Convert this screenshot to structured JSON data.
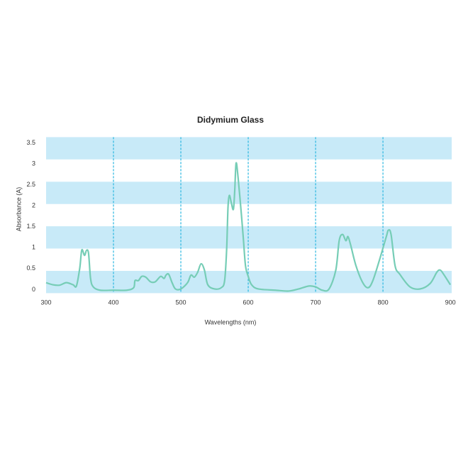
{
  "chart_data": {
    "type": "line",
    "title": "Didymium Glass",
    "x_label": "Wavelengths (nm)",
    "y_label": "Absorbance (A)",
    "xlim": [
      300,
      902
    ],
    "ylim": [
      -0.05,
      3.67
    ],
    "xticks": [
      300,
      400,
      500,
      600,
      700,
      800,
      900
    ],
    "yticks": [
      0,
      0.5,
      1,
      1.5,
      2,
      2.5,
      3,
      3.5
    ],
    "grid": "x",
    "series": [
      {
        "color": "#76cdb6",
        "x": [
          300,
          310,
          320,
          330,
          340,
          345,
          350,
          353,
          357,
          360,
          363,
          366,
          370,
          380,
          400,
          420,
          430,
          432,
          437,
          442,
          448,
          455,
          462,
          470,
          475,
          478,
          482,
          487,
          492,
          500,
          510,
          515,
          520,
          525,
          530,
          535,
          540,
          550,
          560,
          565,
          568,
          570,
          572,
          575,
          578,
          580,
          582,
          585,
          590,
          593,
          596,
          600,
          605,
          615,
          640,
          660,
          675,
          690,
          700,
          710,
          720,
          730,
          735,
          740,
          745,
          748,
          752,
          760,
          770,
          778,
          785,
          795,
          805,
          808,
          812,
          818,
          825,
          840,
          855,
          870,
          880,
          885,
          890,
          900
        ],
        "values": [
          0.2,
          0.15,
          0.14,
          0.2,
          0.15,
          0.12,
          0.55,
          0.98,
          0.85,
          0.97,
          0.9,
          0.3,
          0.1,
          0.02,
          0.02,
          0.02,
          0.08,
          0.25,
          0.25,
          0.35,
          0.33,
          0.22,
          0.22,
          0.35,
          0.3,
          0.38,
          0.4,
          0.2,
          0.05,
          0.05,
          0.2,
          0.38,
          0.33,
          0.45,
          0.65,
          0.5,
          0.15,
          0.05,
          0.08,
          0.25,
          1.0,
          2.0,
          2.28,
          2.1,
          1.95,
          2.4,
          3.05,
          2.7,
          1.8,
          1.2,
          0.6,
          0.35,
          0.15,
          0.05,
          0.02,
          0.0,
          0.05,
          0.12,
          0.1,
          0.02,
          0.05,
          0.5,
          1.2,
          1.35,
          1.2,
          1.3,
          1.1,
          0.6,
          0.2,
          0.08,
          0.25,
          0.75,
          1.3,
          1.45,
          1.35,
          0.6,
          0.4,
          0.1,
          0.05,
          0.18,
          0.45,
          0.5,
          0.4,
          0.15
        ]
      }
    ]
  }
}
